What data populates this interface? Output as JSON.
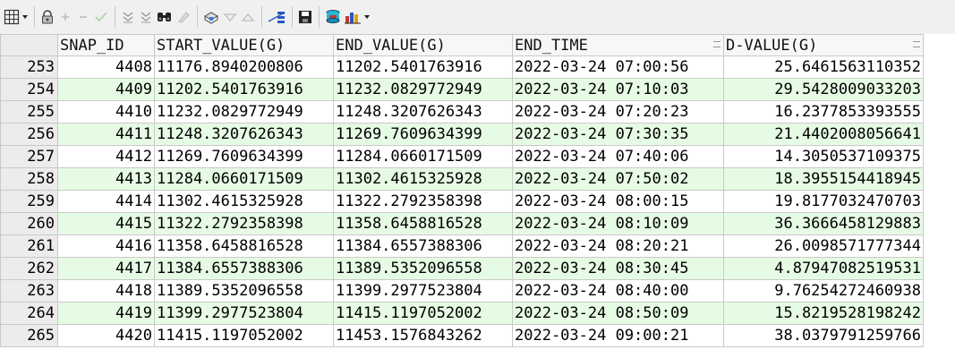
{
  "toolbar": {
    "icons": [
      "grid-view-icon",
      "dropdown-icon",
      "lock-icon",
      "add-record-icon",
      "delete-record-icon",
      "post-changes-icon",
      "filter-icon",
      "clear-filter-icon",
      "find-icon",
      "clear-icon",
      "print-icon",
      "sort-desc-icon",
      "sort-asc-icon",
      "query-plan-icon",
      "save-icon",
      "connect-icon",
      "chart-icon",
      "chart-dropdown-icon"
    ]
  },
  "columns": [
    "SNAP_ID",
    "START_VALUE(G)",
    "END_VALUE(G)",
    "END_TIME",
    "D-VALUE(G)"
  ],
  "rows": [
    {
      "num": "253",
      "snap_id": "4408",
      "start": "11176.8940200806",
      "end": "11202.5401763916",
      "time": "2022-03-24 07:00:56",
      "dval": "25.6461563110352"
    },
    {
      "num": "254",
      "snap_id": "4409",
      "start": "11202.5401763916",
      "end": "11232.0829772949",
      "time": "2022-03-24 07:10:03",
      "dval": "29.5428009033203"
    },
    {
      "num": "255",
      "snap_id": "4410",
      "start": "11232.0829772949",
      "end": "11248.3207626343",
      "time": "2022-03-24 07:20:23",
      "dval": "16.2377853393555"
    },
    {
      "num": "256",
      "snap_id": "4411",
      "start": "11248.3207626343",
      "end": "11269.7609634399",
      "time": "2022-03-24 07:30:35",
      "dval": "21.4402008056641"
    },
    {
      "num": "257",
      "snap_id": "4412",
      "start": "11269.7609634399",
      "end": "11284.0660171509",
      "time": "2022-03-24 07:40:06",
      "dval": "14.3050537109375"
    },
    {
      "num": "258",
      "snap_id": "4413",
      "start": "11284.0660171509",
      "end": "11302.4615325928",
      "time": "2022-03-24 07:50:02",
      "dval": "18.3955154418945"
    },
    {
      "num": "259",
      "snap_id": "4414",
      "start": "11302.4615325928",
      "end": "11322.2792358398",
      "time": "2022-03-24 08:00:15",
      "dval": "19.8177032470703"
    },
    {
      "num": "260",
      "snap_id": "4415",
      "start": "11322.2792358398",
      "end": "11358.6458816528",
      "time": "2022-03-24 08:10:09",
      "dval": "36.3666458129883"
    },
    {
      "num": "261",
      "snap_id": "4416",
      "start": "11358.6458816528",
      "end": "11384.6557388306",
      "time": "2022-03-24 08:20:21",
      "dval": "26.0098571777344"
    },
    {
      "num": "262",
      "snap_id": "4417",
      "start": "11384.6557388306",
      "end": "11389.5352096558",
      "time": "2022-03-24 08:30:45",
      "dval": "4.87947082519531"
    },
    {
      "num": "263",
      "snap_id": "4418",
      "start": "11389.5352096558",
      "end": "11399.2977523804",
      "time": "2022-03-24 08:40:00",
      "dval": "9.76254272460938"
    },
    {
      "num": "264",
      "snap_id": "4419",
      "start": "11399.2977523804",
      "end": "11415.1197052002",
      "time": "2022-03-24 08:50:09",
      "dval": "15.8219528198242"
    },
    {
      "num": "265",
      "snap_id": "4420",
      "start": "11415.1197052002",
      "end": "11453.1576843262",
      "time": "2022-03-24 09:00:21",
      "dval": "38.0379791259766"
    }
  ],
  "colors": {
    "alt_row": "#e6fbe4",
    "header": "#f7f7f7",
    "grid_line": "#c9c9c9"
  }
}
